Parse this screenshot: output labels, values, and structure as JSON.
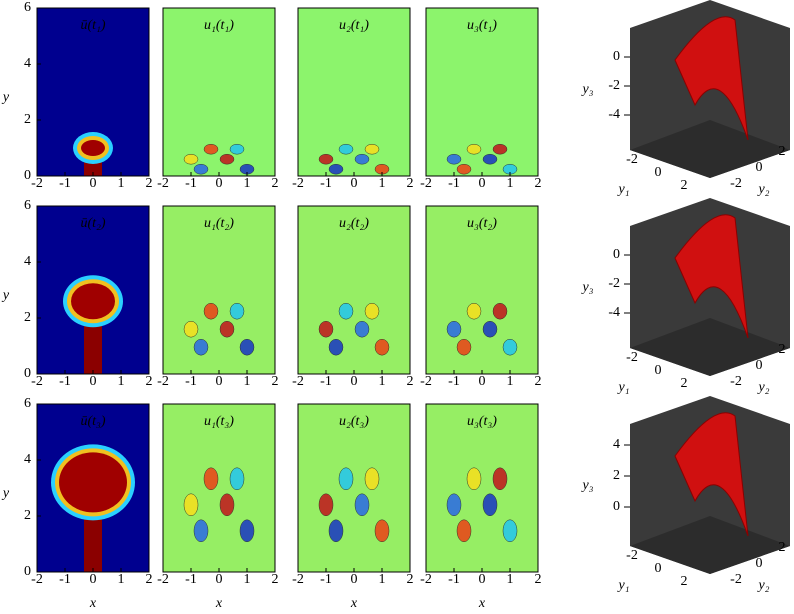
{
  "figure": {
    "xlabel": "x",
    "ylabel": "y",
    "xlim": [
      -2,
      2
    ],
    "ylim": [
      0,
      6
    ],
    "xticks": [
      -2,
      -1,
      0,
      1,
      2
    ],
    "yticks": [
      0,
      2,
      4,
      6
    ],
    "y1label": "y₁",
    "y2label": "y₂",
    "y3label": "y₃",
    "y1ticks": [
      -2,
      0,
      2
    ],
    "y2ticks": [
      -2,
      0,
      2
    ],
    "rows": [
      {
        "titles": [
          "ū(t₁)",
          "u₁(t₁)",
          "u₂(t₁)",
          "u₃(t₁)"
        ],
        "y3ticks": [
          0,
          -2,
          -4
        ]
      },
      {
        "titles": [
          "ū(t₂)",
          "u₁(t₂)",
          "u₂(t₂)",
          "u₃(t₂)"
        ],
        "y3ticks": [
          0,
          -2,
          -4
        ]
      },
      {
        "titles": [
          "ū(t₃)",
          "u₁(t₃)",
          "u₂(t₃)",
          "u₃(t₃)"
        ],
        "y3ticks": [
          4,
          2,
          0
        ]
      }
    ]
  }
}
